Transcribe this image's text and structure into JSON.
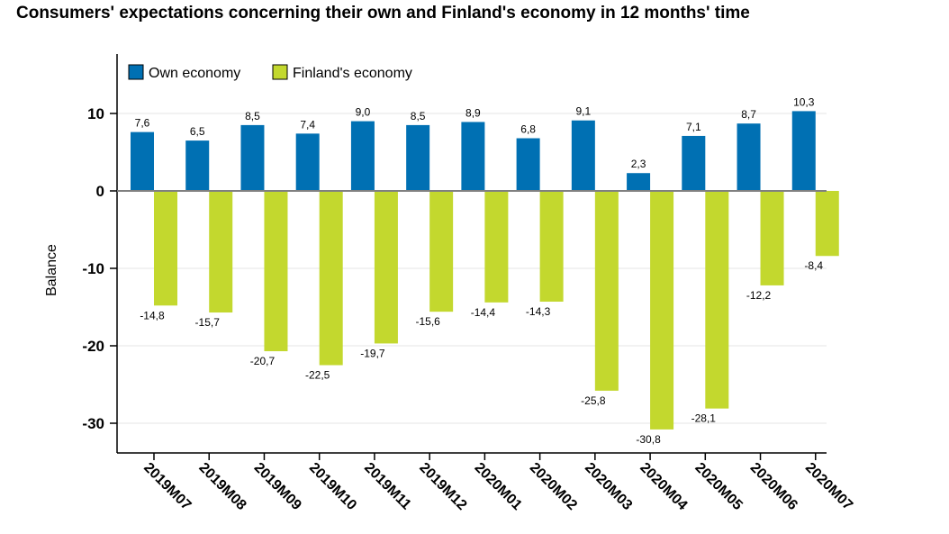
{
  "chart_data": {
    "type": "bar",
    "title": "Consumers' expectations concerning their own and Finland's economy in 12 months' time",
    "ylabel": "Balance",
    "xlabel": "",
    "ylim": [
      -35,
      17
    ],
    "yticks": [
      10,
      0,
      -10,
      -20,
      -30
    ],
    "ytick_labels": [
      "10",
      "0",
      "-10",
      "-20",
      "-30"
    ],
    "grid": true,
    "legend_position": "top-left",
    "categories": [
      "2019M07",
      "2019M08",
      "2019M09",
      "2019M10",
      "2019M11",
      "2019M12",
      "2020M01",
      "2020M02",
      "2020M03",
      "2020M04",
      "2020M05",
      "2020M06",
      "2020M07"
    ],
    "series": [
      {
        "name": "Own economy",
        "color": "#0070b3",
        "values": [
          7.6,
          6.5,
          8.5,
          7.4,
          9.0,
          8.5,
          8.9,
          6.8,
          9.1,
          2.3,
          7.1,
          8.7,
          10.3
        ],
        "labels": [
          "7,6",
          "6,5",
          "8,5",
          "7,4",
          "9,0",
          "8,5",
          "8,9",
          "6,8",
          "9,1",
          "2,3",
          "7,1",
          "8,7",
          "10,3"
        ]
      },
      {
        "name": "Finland's economy",
        "color": "#c3d82e",
        "values": [
          -14.8,
          -15.7,
          -20.7,
          -22.5,
          -19.7,
          -15.6,
          -14.4,
          -14.3,
          -25.8,
          -30.8,
          -28.1,
          -12.2,
          -8.4
        ],
        "labels": [
          "-14,8",
          "-15,7",
          "-20,7",
          "-22,5",
          "-19,7",
          "-15,6",
          "-14,4",
          "-14,3",
          "-25,8",
          "-30,8",
          "-28,1",
          "-12,2",
          "-8,4"
        ]
      }
    ]
  }
}
